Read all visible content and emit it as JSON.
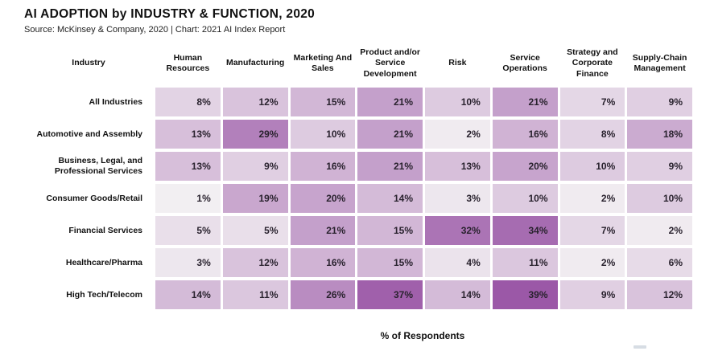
{
  "page": {
    "title": "AI ADOPTION by INDUSTRY & FUNCTION, 2020",
    "source": "Source: McKinsey & Company, 2020 | Chart: 2021 AI Index Report",
    "footer_label": "% of Respondents"
  },
  "chart_data": {
    "type": "heatmap",
    "title": "AI ADOPTION by INDUSTRY & FUNCTION, 2020",
    "subtitle": "Source: McKinsey & Company, 2020 | Chart: 2021 AI Index Report",
    "corner_label": "Industry",
    "columns": [
      "Human Resources",
      "Manufacturing",
      "Marketing And Sales",
      "Product and/or Service Development",
      "Risk",
      "Service Operations",
      "Strategy and Corporate Finance",
      "Supply-Chain Management"
    ],
    "rows": [
      {
        "label": "All Industries",
        "values": [
          8,
          12,
          15,
          21,
          10,
          21,
          7,
          9
        ]
      },
      {
        "label": "Automotive and Assembly",
        "values": [
          13,
          29,
          10,
          21,
          2,
          16,
          8,
          18
        ]
      },
      {
        "label": "Business, Legal, and Professional Services",
        "values": [
          13,
          9,
          16,
          21,
          13,
          20,
          10,
          9
        ]
      },
      {
        "label": "Consumer Goods/Retail",
        "values": [
          1,
          19,
          20,
          14,
          3,
          10,
          2,
          10
        ]
      },
      {
        "label": "Financial Services",
        "values": [
          5,
          5,
          21,
          15,
          32,
          34,
          7,
          2
        ]
      },
      {
        "label": "Healthcare/Pharma",
        "values": [
          3,
          12,
          16,
          15,
          4,
          11,
          2,
          6
        ]
      },
      {
        "label": "High Tech/Telecom",
        "values": [
          14,
          11,
          26,
          37,
          14,
          39,
          9,
          12
        ]
      }
    ],
    "value_suffix": "%",
    "footer_label": "% of Respondents",
    "color_scale": {
      "min_value": 1,
      "max_value": 39,
      "min_color": "#f2eff2",
      "max_color": "#9b58a7"
    },
    "legend_position": "none",
    "grid": false
  }
}
